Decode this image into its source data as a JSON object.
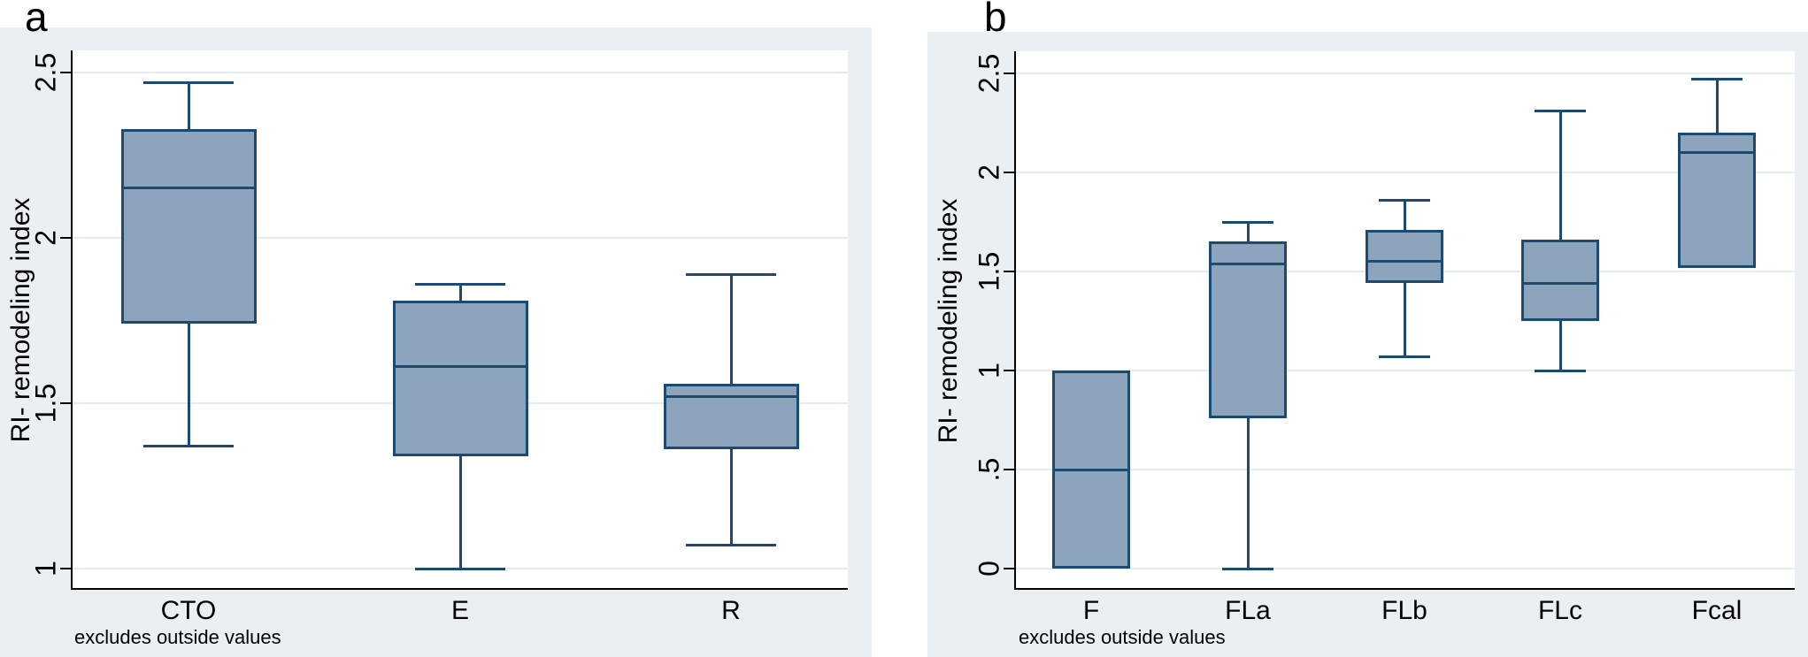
{
  "colors": {
    "page_bg": "#ffffff",
    "panel_bg": "#e9eff2",
    "plot_bg": "#ffffff",
    "gridline": "#e2ecf2",
    "axis": "#000000",
    "box_fill": "#8da5bc",
    "box_stroke": "#1c4a73",
    "text": "#000000"
  },
  "chart_data": [
    {
      "type": "box",
      "panel_label": "a",
      "ylabel": "RI- remodeling index",
      "note": "excludes outside values",
      "grid": true,
      "legend": "none",
      "categories": [
        "CTO",
        "E",
        "R"
      ],
      "yticks": [
        1,
        1.5,
        2,
        2.5
      ],
      "ytick_labels": [
        "1",
        "1.5",
        "2",
        "2.5"
      ],
      "ylim": [
        0.936,
        2.567
      ],
      "series": [
        {
          "category": "CTO",
          "whisker_low": 1.37,
          "q1": 1.74,
          "median": 2.15,
          "q3": 2.33,
          "whisker_high": 2.47
        },
        {
          "category": "E",
          "whisker_low": 1.0,
          "q1": 1.34,
          "median": 1.61,
          "q3": 1.81,
          "whisker_high": 1.86
        },
        {
          "category": "R",
          "whisker_low": 1.07,
          "q1": 1.36,
          "median": 1.52,
          "q3": 1.56,
          "whisker_high": 1.89
        }
      ]
    },
    {
      "type": "box",
      "panel_label": "b",
      "ylabel": "RI- remodeling index",
      "note": "excludes outside values",
      "grid": true,
      "legend": "none",
      "categories": [
        "F",
        "FLa",
        "FLb",
        "FLc",
        "Fcal"
      ],
      "yticks": [
        0,
        0.5,
        1,
        1.5,
        2,
        2.5
      ],
      "ytick_labels": [
        "0",
        ".5",
        "1",
        "1.5",
        "2",
        "2.5"
      ],
      "ylim": [
        -0.107,
        2.612
      ],
      "series": [
        {
          "category": "F",
          "whisker_low": 0.0,
          "q1": 0.0,
          "median": 0.5,
          "q3": 1.0,
          "whisker_high": 1.0
        },
        {
          "category": "FLa",
          "whisker_low": 0.0,
          "q1": 0.76,
          "median": 1.54,
          "q3": 1.65,
          "whisker_high": 1.75
        },
        {
          "category": "FLb",
          "whisker_low": 1.07,
          "q1": 1.44,
          "median": 1.55,
          "q3": 1.71,
          "whisker_high": 1.86
        },
        {
          "category": "FLc",
          "whisker_low": 1.0,
          "q1": 1.25,
          "median": 1.44,
          "q3": 1.66,
          "whisker_high": 2.31
        },
        {
          "category": "Fcal",
          "whisker_low": 1.52,
          "q1": 1.52,
          "median": 2.1,
          "q3": 2.2,
          "whisker_high": 2.47
        }
      ]
    }
  ]
}
